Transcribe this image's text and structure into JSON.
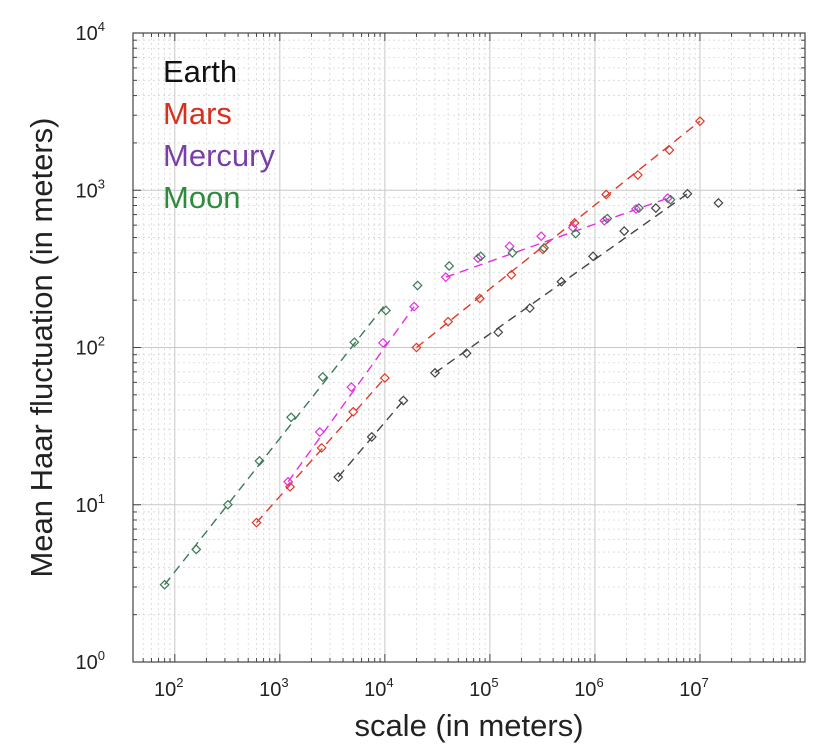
{
  "chart_data": {
    "type": "scatter",
    "title": "",
    "xlabel": "scale (in meters)",
    "ylabel": "Mean Haar fluctuation (in meters)",
    "xscale": "log",
    "yscale": "log",
    "xlim": [
      40,
      100000000
    ],
    "ylim": [
      1,
      10000
    ],
    "grid": true,
    "legend_position": "top-left",
    "x_ticks": [
      {
        "base": "10",
        "exp": "2",
        "value": 100
      },
      {
        "base": "10",
        "exp": "3",
        "value": 1000
      },
      {
        "base": "10",
        "exp": "4",
        "value": 10000
      },
      {
        "base": "10",
        "exp": "5",
        "value": 100000
      },
      {
        "base": "10",
        "exp": "6",
        "value": 1000000
      },
      {
        "base": "10",
        "exp": "7",
        "value": 10000000
      }
    ],
    "y_ticks": [
      {
        "base": "10",
        "exp": "0",
        "value": 1
      },
      {
        "base": "10",
        "exp": "1",
        "value": 10
      },
      {
        "base": "10",
        "exp": "2",
        "value": 100
      },
      {
        "base": "10",
        "exp": "3",
        "value": 1000
      },
      {
        "base": "10",
        "exp": "4",
        "value": 10000
      }
    ],
    "series": [
      {
        "name": "Earth",
        "color": "#111111",
        "marker_color": "#444444",
        "points": [
          {
            "x": 3600,
            "y": 15
          },
          {
            "x": 7500,
            "y": 27
          },
          {
            "x": 15000,
            "y": 46
          },
          {
            "x": 30000,
            "y": 69
          },
          {
            "x": 60000,
            "y": 92
          },
          {
            "x": 120000,
            "y": 125
          },
          {
            "x": 240000,
            "y": 178
          },
          {
            "x": 480000,
            "y": 262
          },
          {
            "x": 960000,
            "y": 380
          },
          {
            "x": 1900000,
            "y": 550
          },
          {
            "x": 3800000,
            "y": 770
          },
          {
            "x": 7600000,
            "y": 950
          },
          {
            "x": 15000000,
            "y": 830
          }
        ],
        "fit_lines": [
          {
            "x": [
              3600,
              15000
            ],
            "y": [
              15,
              46
            ]
          },
          {
            "x": [
              30000,
              7600000
            ],
            "y": [
              69,
              950
            ]
          }
        ]
      },
      {
        "name": "Mars",
        "color": "#d8301f",
        "marker_color": "#e03a2a",
        "points": [
          {
            "x": 600,
            "y": 7.7
          },
          {
            "x": 1250,
            "y": 13
          },
          {
            "x": 2500,
            "y": 23
          },
          {
            "x": 5000,
            "y": 39
          },
          {
            "x": 10000,
            "y": 64
          },
          {
            "x": 20000,
            "y": 100
          },
          {
            "x": 40000,
            "y": 146
          },
          {
            "x": 80000,
            "y": 205
          },
          {
            "x": 160000,
            "y": 290
          },
          {
            "x": 320000,
            "y": 420
          },
          {
            "x": 640000,
            "y": 620
          },
          {
            "x": 1280000,
            "y": 940
          },
          {
            "x": 2560000,
            "y": 1250
          },
          {
            "x": 5120000,
            "y": 1800
          },
          {
            "x": 10000000,
            "y": 2750
          }
        ],
        "fit_lines": [
          {
            "x": [
              600,
              10000
            ],
            "y": [
              7.7,
              64
            ]
          },
          {
            "x": [
              20000,
              10000000
            ],
            "y": [
              100,
              2750
            ]
          }
        ]
      },
      {
        "name": "Mercury",
        "color": "#7a3fa6",
        "marker_color": "#e62ee6",
        "points": [
          {
            "x": 1200,
            "y": 14
          },
          {
            "x": 2400,
            "y": 29
          },
          {
            "x": 4800,
            "y": 56
          },
          {
            "x": 9600,
            "y": 107
          },
          {
            "x": 19000,
            "y": 182
          },
          {
            "x": 38000,
            "y": 280
          },
          {
            "x": 77000,
            "y": 370
          },
          {
            "x": 154000,
            "y": 440
          },
          {
            "x": 308000,
            "y": 510
          },
          {
            "x": 616000,
            "y": 580
          },
          {
            "x": 1230000,
            "y": 640
          },
          {
            "x": 2460000,
            "y": 760
          },
          {
            "x": 4920000,
            "y": 890
          }
        ],
        "fit_lines": [
          {
            "x": [
              1200,
              19000
            ],
            "y": [
              14,
              182
            ]
          },
          {
            "x": [
              38000,
              4920000
            ],
            "y": [
              280,
              890
            ]
          }
        ]
      },
      {
        "name": "Moon",
        "color": "#2e8b3e",
        "marker_color": "#3c7a55",
        "points": [
          {
            "x": 80,
            "y": 3.1
          },
          {
            "x": 160,
            "y": 5.2
          },
          {
            "x": 320,
            "y": 10
          },
          {
            "x": 640,
            "y": 19
          },
          {
            "x": 1280,
            "y": 36
          },
          {
            "x": 2560,
            "y": 65
          },
          {
            "x": 5120,
            "y": 108
          },
          {
            "x": 10240,
            "y": 172
          },
          {
            "x": 20480,
            "y": 248
          },
          {
            "x": 40960,
            "y": 330
          },
          {
            "x": 81920,
            "y": 380
          },
          {
            "x": 163840,
            "y": 400
          },
          {
            "x": 327680,
            "y": 430
          },
          {
            "x": 655360,
            "y": 530
          },
          {
            "x": 1310720,
            "y": 660
          },
          {
            "x": 2621440,
            "y": 770
          },
          {
            "x": 5242880,
            "y": 870
          }
        ],
        "fit_lines": [
          {
            "x": [
              80,
              10240
            ],
            "y": [
              3.1,
              190
            ]
          }
        ]
      }
    ]
  }
}
